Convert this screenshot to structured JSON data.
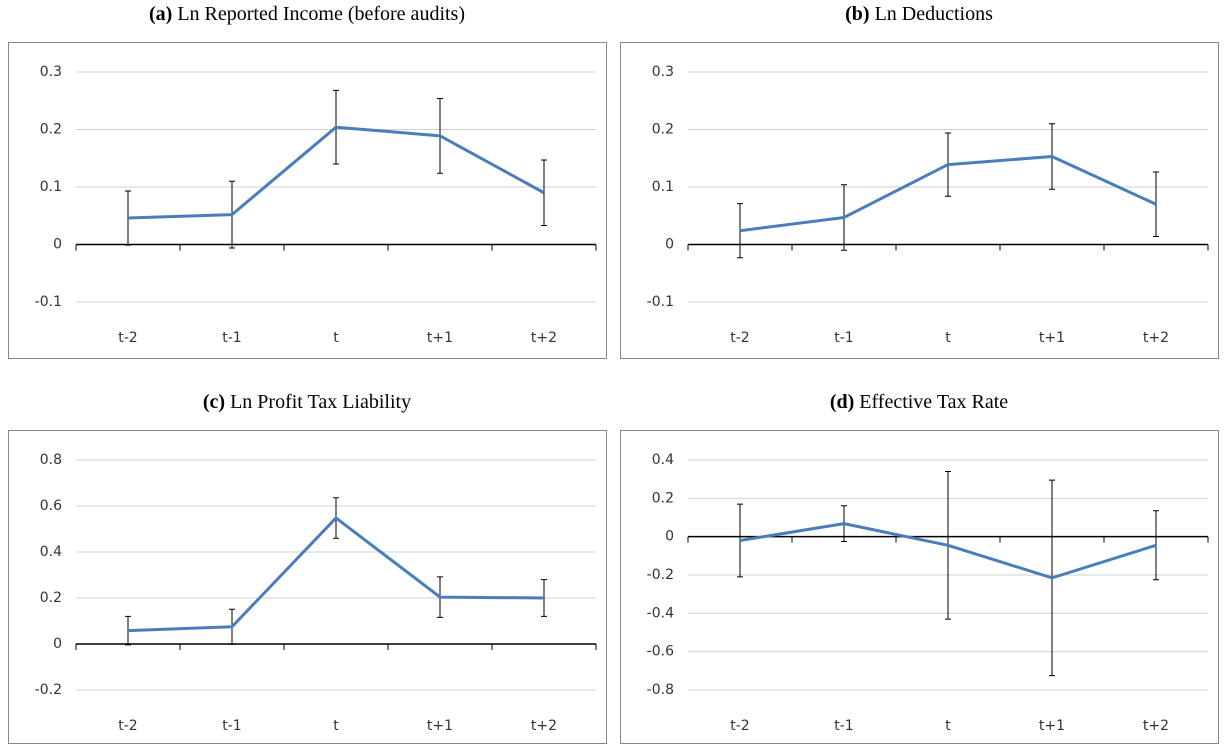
{
  "chart_data": [
    {
      "type": "line",
      "label": "(a)",
      "title": "Ln Reported Income (before audits)",
      "categories": [
        "t-2",
        "t-1",
        "t",
        "t+1",
        "t+2"
      ],
      "values": [
        0.046,
        0.052,
        0.204,
        0.189,
        0.09
      ],
      "errors": [
        0.047,
        0.058,
        0.064,
        0.065,
        0.057
      ],
      "color": "#4a7ebb",
      "ylim": [
        -0.1,
        0.3
      ],
      "yticks": [
        -0.1,
        0,
        0.1,
        0.2,
        0.3
      ],
      "grid": true
    },
    {
      "type": "line",
      "label": "(b)",
      "title": "Ln Deductions",
      "categories": [
        "t-2",
        "t-1",
        "t",
        "t+1",
        "t+2"
      ],
      "values": [
        0.024,
        0.047,
        0.139,
        0.153,
        0.07
      ],
      "errors": [
        0.047,
        0.057,
        0.055,
        0.057,
        0.056
      ],
      "color": "#4a7ebb",
      "ylim": [
        -0.1,
        0.3
      ],
      "yticks": [
        -0.1,
        0,
        0.1,
        0.2,
        0.3
      ],
      "grid": true
    },
    {
      "type": "line",
      "label": "(c)",
      "title": "Ln Profit Tax Liability",
      "categories": [
        "t-2",
        "t-1",
        "t",
        "t+1",
        "t+2"
      ],
      "values": [
        0.058,
        0.075,
        0.548,
        0.204,
        0.2
      ],
      "errors": [
        0.062,
        0.076,
        0.088,
        0.088,
        0.08
      ],
      "color": "#4a7ebb",
      "ylim": [
        -0.2,
        0.8
      ],
      "yticks": [
        -0.2,
        0,
        0.2,
        0.4,
        0.6,
        0.8
      ],
      "grid": true
    },
    {
      "type": "line",
      "label": "(d)",
      "title": "Effective Tax Rate",
      "categories": [
        "t-2",
        "t-1",
        "t",
        "t+1",
        "t+2"
      ],
      "values": [
        -0.02,
        0.068,
        -0.045,
        -0.215,
        -0.045
      ],
      "errors": [
        0.19,
        0.093,
        0.385,
        0.51,
        0.18
      ],
      "color": "#4a7ebb",
      "ylim": [
        -0.8,
        0.4
      ],
      "yticks": [
        -0.8,
        -0.6,
        -0.4,
        -0.2,
        0,
        0.2,
        0.4
      ],
      "grid": true
    }
  ]
}
